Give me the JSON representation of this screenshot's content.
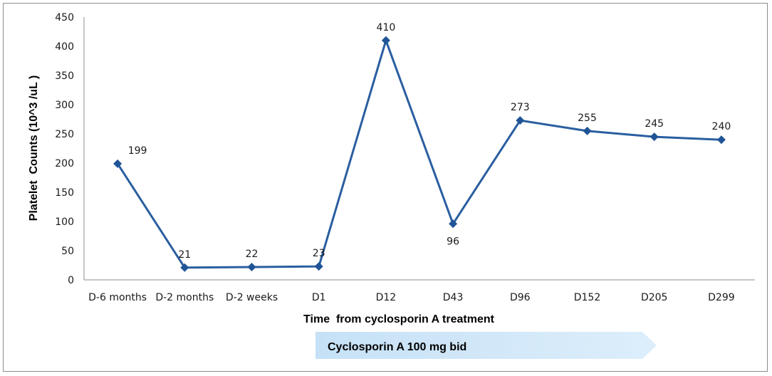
{
  "chart_data": {
    "type": "line",
    "categories": [
      "D-6 months",
      "D-2 months",
      "D-2 weeks",
      "D1",
      "D12",
      "D43",
      "D96",
      "D152",
      "D205",
      "D299"
    ],
    "series": [
      {
        "values": [
          199,
          21,
          22,
          23,
          410,
          96,
          273,
          255,
          245,
          240
        ]
      }
    ],
    "data_labels": [
      "199",
      "21",
      "22",
      "23",
      "410",
      "96",
      "273",
      "255",
      "245",
      "240"
    ],
    "xlabel": "Time  from cyclosporin A treatment",
    "ylabel": "Platelet  Counts (10^3 /uL )",
    "ylim": [
      0,
      450
    ],
    "yticks": [
      0,
      50,
      100,
      150,
      200,
      250,
      300,
      350,
      400,
      450
    ],
    "grid": false,
    "legend": "none",
    "colors": {
      "line": "#2a5ea0",
      "marker": "#1f5496",
      "banner": "#cfe6f8",
      "axis": "#8c8c8c"
    }
  },
  "banner": {
    "label": "Cyclosporin A 100 mg  bid"
  }
}
